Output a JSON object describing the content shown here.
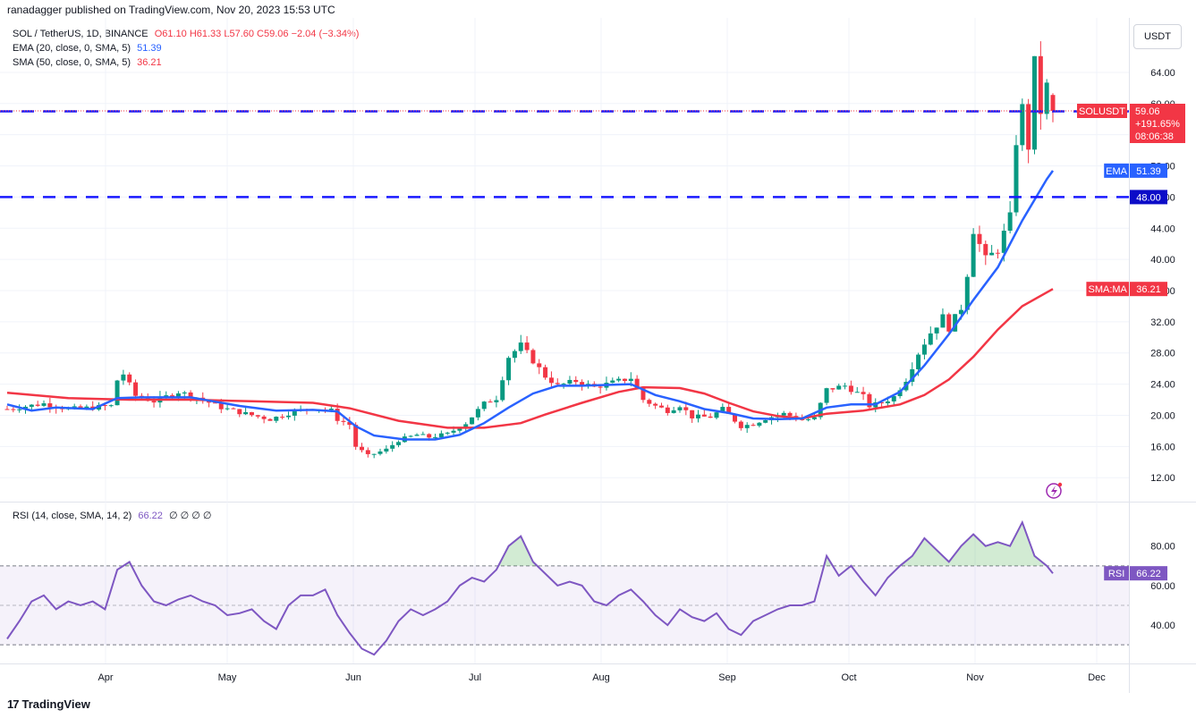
{
  "header": {
    "publisher": "ranadagger published on TradingView.com, Nov 20, 2023 15:53 UTC"
  },
  "legend": {
    "symbol": "SOL / TetherUS, 1D, BINANCE",
    "ohlc": "O61.10  H61.33  L57.60  C59.06  −2.04 (−3.34%)",
    "ema_label": "EMA (20, close, 0, SMA, 5)",
    "ema_value": "51.39",
    "sma_label": "SMA (50, close, 0, SMA, 5)",
    "sma_value": "36.21",
    "rsi_label": "RSI (14, close, SMA, 14, 2)",
    "rsi_value": "66.22",
    "rsi_extra": "∅ ∅ ∅ ∅"
  },
  "currency_button": "USDT",
  "footer_brand": "TradingView",
  "colors": {
    "up": "#089981",
    "down": "#f23645",
    "ema": "#2962ff",
    "sma": "#f23645",
    "rsi": "#7e57c2",
    "level": "#1a1aff",
    "grid": "#f0f3fa"
  },
  "chart_data": [
    {
      "type": "candlestick",
      "title": "SOL / TetherUS, 1D, BINANCE",
      "x_ticks": [
        "Apr",
        "May",
        "Jun",
        "Jul",
        "Aug",
        "Sep",
        "Oct",
        "Nov",
        "Dec"
      ],
      "y_ticks": [
        "12.00",
        "16.00",
        "20.00",
        "24.00",
        "28.00",
        "32.00",
        "36.00",
        "40.00",
        "44.00",
        "48.00",
        "52.00",
        "56.00",
        "60.00",
        "64.00"
      ],
      "ylim": [
        9.5,
        69.5
      ],
      "horizontal_levels": [
        {
          "value": 59.0,
          "label": "59.00"
        },
        {
          "value": 48.0,
          "label": "48.00"
        }
      ],
      "price_tag": {
        "name": "SOLUSDT",
        "value": "59.06",
        "change": "+191.65%",
        "timer": "08:06:38"
      },
      "ema_tag": {
        "name": "EMA",
        "value": "51.39"
      },
      "sma_tag": {
        "name": "SMA:MA",
        "value": "36.21"
      },
      "last_candle": {
        "open": 61.1,
        "high": 61.33,
        "low": 57.6,
        "close": 59.06
      },
      "price_path": [
        [
          0,
          20.8
        ],
        [
          6,
          21.5
        ],
        [
          10,
          20.8
        ],
        [
          14,
          21.0
        ],
        [
          17,
          21.2
        ],
        [
          18,
          24.5
        ],
        [
          19,
          25.3
        ],
        [
          21,
          22.5
        ],
        [
          24,
          21.8
        ],
        [
          28,
          23.0
        ],
        [
          31,
          22.3
        ],
        [
          35,
          21.0
        ],
        [
          39,
          20.2
        ],
        [
          43,
          19.5
        ],
        [
          47,
          20.5
        ],
        [
          50,
          21.0
        ],
        [
          53,
          20.6
        ],
        [
          54,
          19.5
        ],
        [
          56,
          18.8
        ],
        [
          57,
          16.0
        ],
        [
          59,
          14.8
        ],
        [
          62,
          15.6
        ],
        [
          64,
          16.8
        ],
        [
          67,
          17.5
        ],
        [
          69,
          17.2
        ],
        [
          72,
          17.6
        ],
        [
          75,
          19.0
        ],
        [
          78,
          21.5
        ],
        [
          80,
          22.2
        ],
        [
          82,
          27.5
        ],
        [
          84,
          29.0
        ],
        [
          86,
          27.0
        ],
        [
          88,
          25.0
        ],
        [
          90,
          23.8
        ],
        [
          93,
          24.4
        ],
        [
          96,
          23.6
        ],
        [
          99,
          24.2
        ],
        [
          102,
          24.8
        ],
        [
          104,
          22.0
        ],
        [
          106,
          21.2
        ],
        [
          108,
          20.6
        ],
        [
          110,
          21.3
        ],
        [
          112,
          19.8
        ],
        [
          115,
          19.8
        ],
        [
          117,
          20.8
        ],
        [
          120,
          18.6
        ],
        [
          122,
          18.9
        ],
        [
          124,
          19.6
        ],
        [
          127,
          20.2
        ],
        [
          130,
          19.4
        ],
        [
          132,
          19.6
        ],
        [
          134,
          23.3
        ],
        [
          137,
          23.8
        ],
        [
          140,
          22.4
        ],
        [
          141,
          21.2
        ],
        [
          143,
          21.6
        ],
        [
          145,
          22.4
        ],
        [
          147,
          24.6
        ],
        [
          149,
          28.0
        ],
        [
          151,
          30.6
        ],
        [
          153,
          32.6
        ],
        [
          154,
          31.2
        ],
        [
          156,
          33.8
        ],
        [
          157,
          38.2
        ],
        [
          158,
          43.8
        ],
        [
          160,
          40.0
        ],
        [
          162,
          41.3
        ],
        [
          164,
          45.4
        ],
        [
          165,
          55.2
        ],
        [
          166,
          59.4
        ],
        [
          167,
          54.5
        ],
        [
          168,
          65.2
        ],
        [
          169,
          59.0
        ],
        [
          170,
          62.2
        ],
        [
          171,
          59.0
        ]
      ],
      "ema_20_path": [
        [
          0,
          21.4
        ],
        [
          4,
          20.6
        ],
        [
          8,
          21.0
        ],
        [
          14,
          20.8
        ],
        [
          18,
          22.2
        ],
        [
          22,
          22.3
        ],
        [
          30,
          22.3
        ],
        [
          38,
          21.2
        ],
        [
          44,
          20.6
        ],
        [
          50,
          20.7
        ],
        [
          54,
          20.5
        ],
        [
          57,
          18.6
        ],
        [
          60,
          17.4
        ],
        [
          65,
          16.9
        ],
        [
          70,
          16.9
        ],
        [
          74,
          17.5
        ],
        [
          78,
          19.0
        ],
        [
          82,
          21.0
        ],
        [
          86,
          22.8
        ],
        [
          90,
          23.8
        ],
        [
          94,
          23.8
        ],
        [
          98,
          23.9
        ],
        [
          102,
          24.0
        ],
        [
          106,
          22.6
        ],
        [
          110,
          21.8
        ],
        [
          114,
          20.8
        ],
        [
          118,
          20.3
        ],
        [
          122,
          19.6
        ],
        [
          126,
          19.5
        ],
        [
          130,
          19.6
        ],
        [
          134,
          21.0
        ],
        [
          138,
          21.4
        ],
        [
          142,
          21.4
        ],
        [
          146,
          23.0
        ],
        [
          150,
          26.4
        ],
        [
          154,
          30.4
        ],
        [
          158,
          34.8
        ],
        [
          162,
          39.0
        ],
        [
          166,
          45.0
        ],
        [
          170,
          50.3
        ],
        [
          171,
          51.39
        ]
      ],
      "sma_50_path": [
        [
          0,
          22.9
        ],
        [
          10,
          22.2
        ],
        [
          20,
          22.0
        ],
        [
          30,
          22.0
        ],
        [
          40,
          21.8
        ],
        [
          50,
          21.6
        ],
        [
          56,
          20.9
        ],
        [
          64,
          19.3
        ],
        [
          72,
          18.4
        ],
        [
          78,
          18.4
        ],
        [
          84,
          19.0
        ],
        [
          88,
          20.1
        ],
        [
          94,
          21.6
        ],
        [
          100,
          23.0
        ],
        [
          104,
          23.6
        ],
        [
          110,
          23.5
        ],
        [
          114,
          22.8
        ],
        [
          118,
          21.6
        ],
        [
          122,
          20.5
        ],
        [
          126,
          19.9
        ],
        [
          130,
          19.6
        ],
        [
          134,
          20.2
        ],
        [
          140,
          20.6
        ],
        [
          146,
          21.4
        ],
        [
          150,
          22.6
        ],
        [
          154,
          24.6
        ],
        [
          158,
          27.5
        ],
        [
          162,
          31.0
        ],
        [
          166,
          34.0
        ],
        [
          171,
          36.21
        ]
      ]
    },
    {
      "type": "line",
      "title": "RSI (14, close, SMA, 14, 2)",
      "y_ticks": [
        "40.00",
        "60.00",
        "80.00"
      ],
      "ylim": [
        21,
        98
      ],
      "bands": {
        "upper": 70,
        "lower": 30
      },
      "rsi_tag": {
        "name": "RSI",
        "value": "66.22"
      },
      "rsi_path": [
        [
          0,
          33
        ],
        [
          2,
          42
        ],
        [
          4,
          52
        ],
        [
          6,
          55
        ],
        [
          8,
          48
        ],
        [
          10,
          52
        ],
        [
          12,
          50
        ],
        [
          14,
          52
        ],
        [
          16,
          48
        ],
        [
          18,
          68
        ],
        [
          20,
          72
        ],
        [
          22,
          60
        ],
        [
          24,
          52
        ],
        [
          26,
          50
        ],
        [
          28,
          53
        ],
        [
          30,
          55
        ],
        [
          32,
          52
        ],
        [
          34,
          50
        ],
        [
          36,
          45
        ],
        [
          38,
          46
        ],
        [
          40,
          48
        ],
        [
          42,
          42
        ],
        [
          44,
          38
        ],
        [
          46,
          50
        ],
        [
          48,
          55
        ],
        [
          50,
          55
        ],
        [
          52,
          58
        ],
        [
          54,
          45
        ],
        [
          56,
          36
        ],
        [
          58,
          28
        ],
        [
          60,
          25
        ],
        [
          62,
          32
        ],
        [
          64,
          42
        ],
        [
          66,
          48
        ],
        [
          68,
          45
        ],
        [
          70,
          48
        ],
        [
          72,
          52
        ],
        [
          74,
          60
        ],
        [
          76,
          64
        ],
        [
          78,
          62
        ],
        [
          80,
          68
        ],
        [
          82,
          80
        ],
        [
          84,
          85
        ],
        [
          86,
          72
        ],
        [
          88,
          66
        ],
        [
          90,
          60
        ],
        [
          92,
          62
        ],
        [
          94,
          60
        ],
        [
          96,
          52
        ],
        [
          98,
          50
        ],
        [
          100,
          55
        ],
        [
          102,
          58
        ],
        [
          104,
          52
        ],
        [
          106,
          45
        ],
        [
          108,
          40
        ],
        [
          110,
          48
        ],
        [
          112,
          44
        ],
        [
          114,
          42
        ],
        [
          116,
          46
        ],
        [
          118,
          38
        ],
        [
          120,
          35
        ],
        [
          122,
          42
        ],
        [
          124,
          45
        ],
        [
          126,
          48
        ],
        [
          128,
          50
        ],
        [
          130,
          50
        ],
        [
          132,
          52
        ],
        [
          134,
          75
        ],
        [
          136,
          65
        ],
        [
          138,
          70
        ],
        [
          140,
          62
        ],
        [
          142,
          55
        ],
        [
          144,
          64
        ],
        [
          146,
          70
        ],
        [
          148,
          75
        ],
        [
          150,
          84
        ],
        [
          152,
          78
        ],
        [
          154,
          72
        ],
        [
          156,
          80
        ],
        [
          158,
          86
        ],
        [
          160,
          80
        ],
        [
          162,
          82
        ],
        [
          164,
          80
        ],
        [
          166,
          92
        ],
        [
          168,
          75
        ],
        [
          170,
          70
        ],
        [
          171,
          66.22
        ]
      ]
    }
  ]
}
